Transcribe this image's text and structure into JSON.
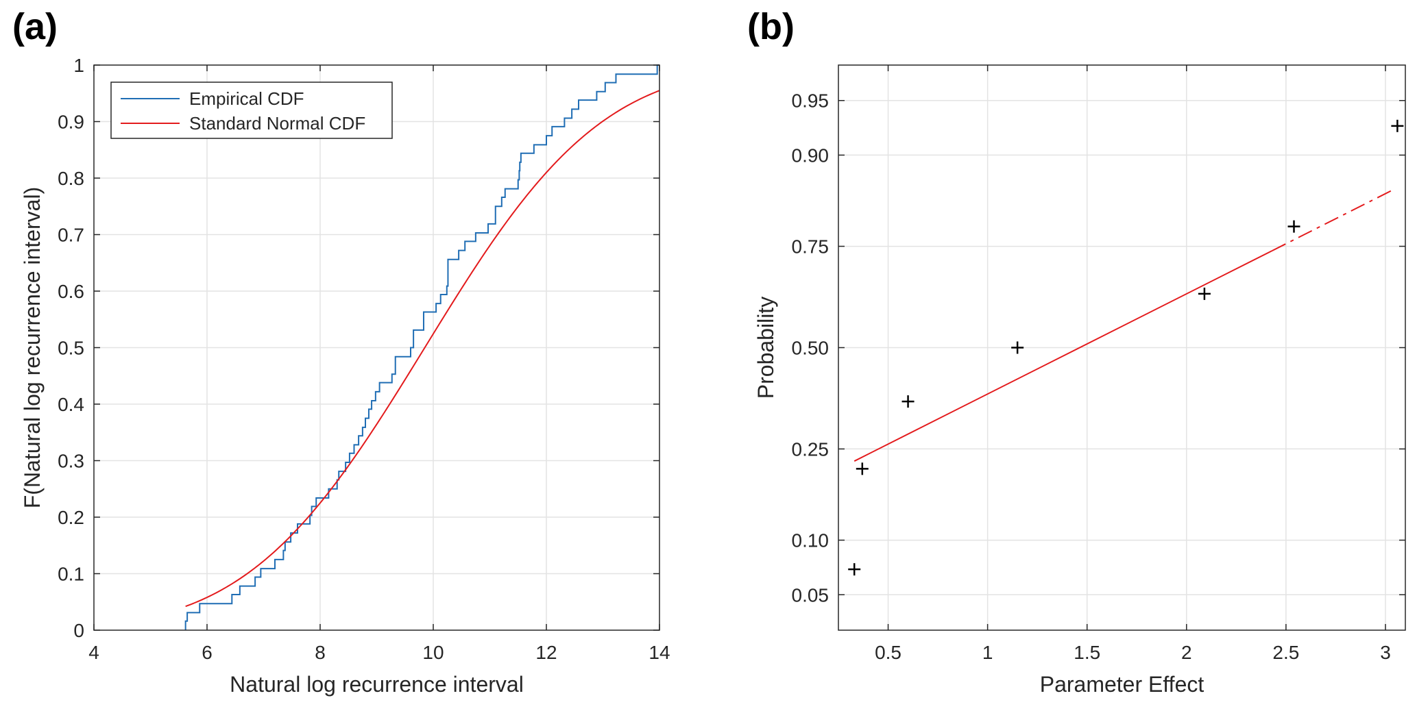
{
  "panels": {
    "a_label": "(a)",
    "b_label": "(b)"
  },
  "colors": {
    "empirical": "#1f6db4",
    "normal": "#e31a1c",
    "grid": "#e3e3e3",
    "axis": "#262626",
    "marker": "#000000"
  },
  "chart_data": [
    {
      "type": "line",
      "title": "",
      "xlabel": "Natural log recurrence interval",
      "ylabel": "F(Natural log recurrence interval)",
      "xlim": [
        4,
        14
      ],
      "ylim": [
        0,
        1
      ],
      "xticks": [
        "4",
        "6",
        "8",
        "10",
        "12",
        "14"
      ],
      "yticks": [
        "0",
        "0.1",
        "0.2",
        "0.3",
        "0.4",
        "0.5",
        "0.6",
        "0.7",
        "0.8",
        "0.9",
        "1"
      ],
      "grid": true,
      "legend_position": "top-left",
      "series": [
        {
          "name": "Empirical CDF",
          "style": "stairs",
          "x": [
            5.62,
            5.62,
            5.65,
            5.87,
            5.92,
            6.44,
            6.58,
            6.85,
            6.95,
            7.2,
            7.35,
            7.38,
            7.48,
            7.6,
            7.82,
            7.85,
            7.93,
            8.15,
            8.3,
            8.33,
            8.45,
            8.52,
            8.6,
            8.68,
            8.75,
            8.8,
            8.86,
            8.91,
            8.98,
            9.05,
            9.27,
            9.33,
            9.6,
            9.65,
            9.83,
            10.05,
            10.13,
            10.24,
            10.26,
            10.45,
            10.56,
            10.75,
            10.97,
            11.1,
            11.21,
            11.27,
            11.5,
            11.52,
            11.53,
            11.55,
            11.78,
            12.0,
            12.1,
            12.32,
            12.45,
            12.57,
            12.89,
            13.04,
            13.23,
            13.96
          ],
          "y": [
            0.0,
            0.016,
            0.031,
            0.047,
            0.047,
            0.063,
            0.078,
            0.094,
            0.109,
            0.125,
            0.141,
            0.156,
            0.172,
            0.188,
            0.203,
            0.219,
            0.234,
            0.25,
            0.266,
            0.281,
            0.297,
            0.313,
            0.328,
            0.344,
            0.359,
            0.375,
            0.391,
            0.406,
            0.422,
            0.438,
            0.453,
            0.484,
            0.5,
            0.531,
            0.563,
            0.578,
            0.594,
            0.609,
            0.656,
            0.672,
            0.688,
            0.703,
            0.719,
            0.75,
            0.766,
            0.781,
            0.797,
            0.813,
            0.828,
            0.844,
            0.859,
            0.875,
            0.891,
            0.906,
            0.922,
            0.938,
            0.953,
            0.969,
            0.984,
            1.0
          ]
        },
        {
          "name": "Standard Normal CDF",
          "style": "line",
          "mean": 9.85,
          "sd": 2.45,
          "x_range": [
            5.62,
            14.0
          ]
        }
      ]
    },
    {
      "type": "scatter",
      "title": "",
      "xlabel": "Parameter Effect",
      "ylabel": "Probability",
      "xlim": [
        0.25,
        3.1
      ],
      "ylim": [
        0.03,
        0.97
      ],
      "y_scale": "normal-probability",
      "xticks": [
        "0.5",
        "1",
        "1.5",
        "2",
        "2.5",
        "3"
      ],
      "yticks": [
        "0.05",
        "0.10",
        "0.25",
        "0.50",
        "0.75",
        "0.90",
        "0.95"
      ],
      "grid": true,
      "series": [
        {
          "marker": "plus",
          "x": [
            0.33,
            0.37,
            0.6,
            1.15,
            2.09,
            2.54,
            3.06
          ],
          "y": [
            0.07,
            0.21,
            0.36,
            0.5,
            0.64,
            0.79,
            0.93
          ]
        },
        {
          "style": "reference-line",
          "x": [
            0.33,
            3.05
          ],
          "y": [
            0.225,
            0.855
          ],
          "dashed_from_x": 2.43
        }
      ]
    }
  ]
}
